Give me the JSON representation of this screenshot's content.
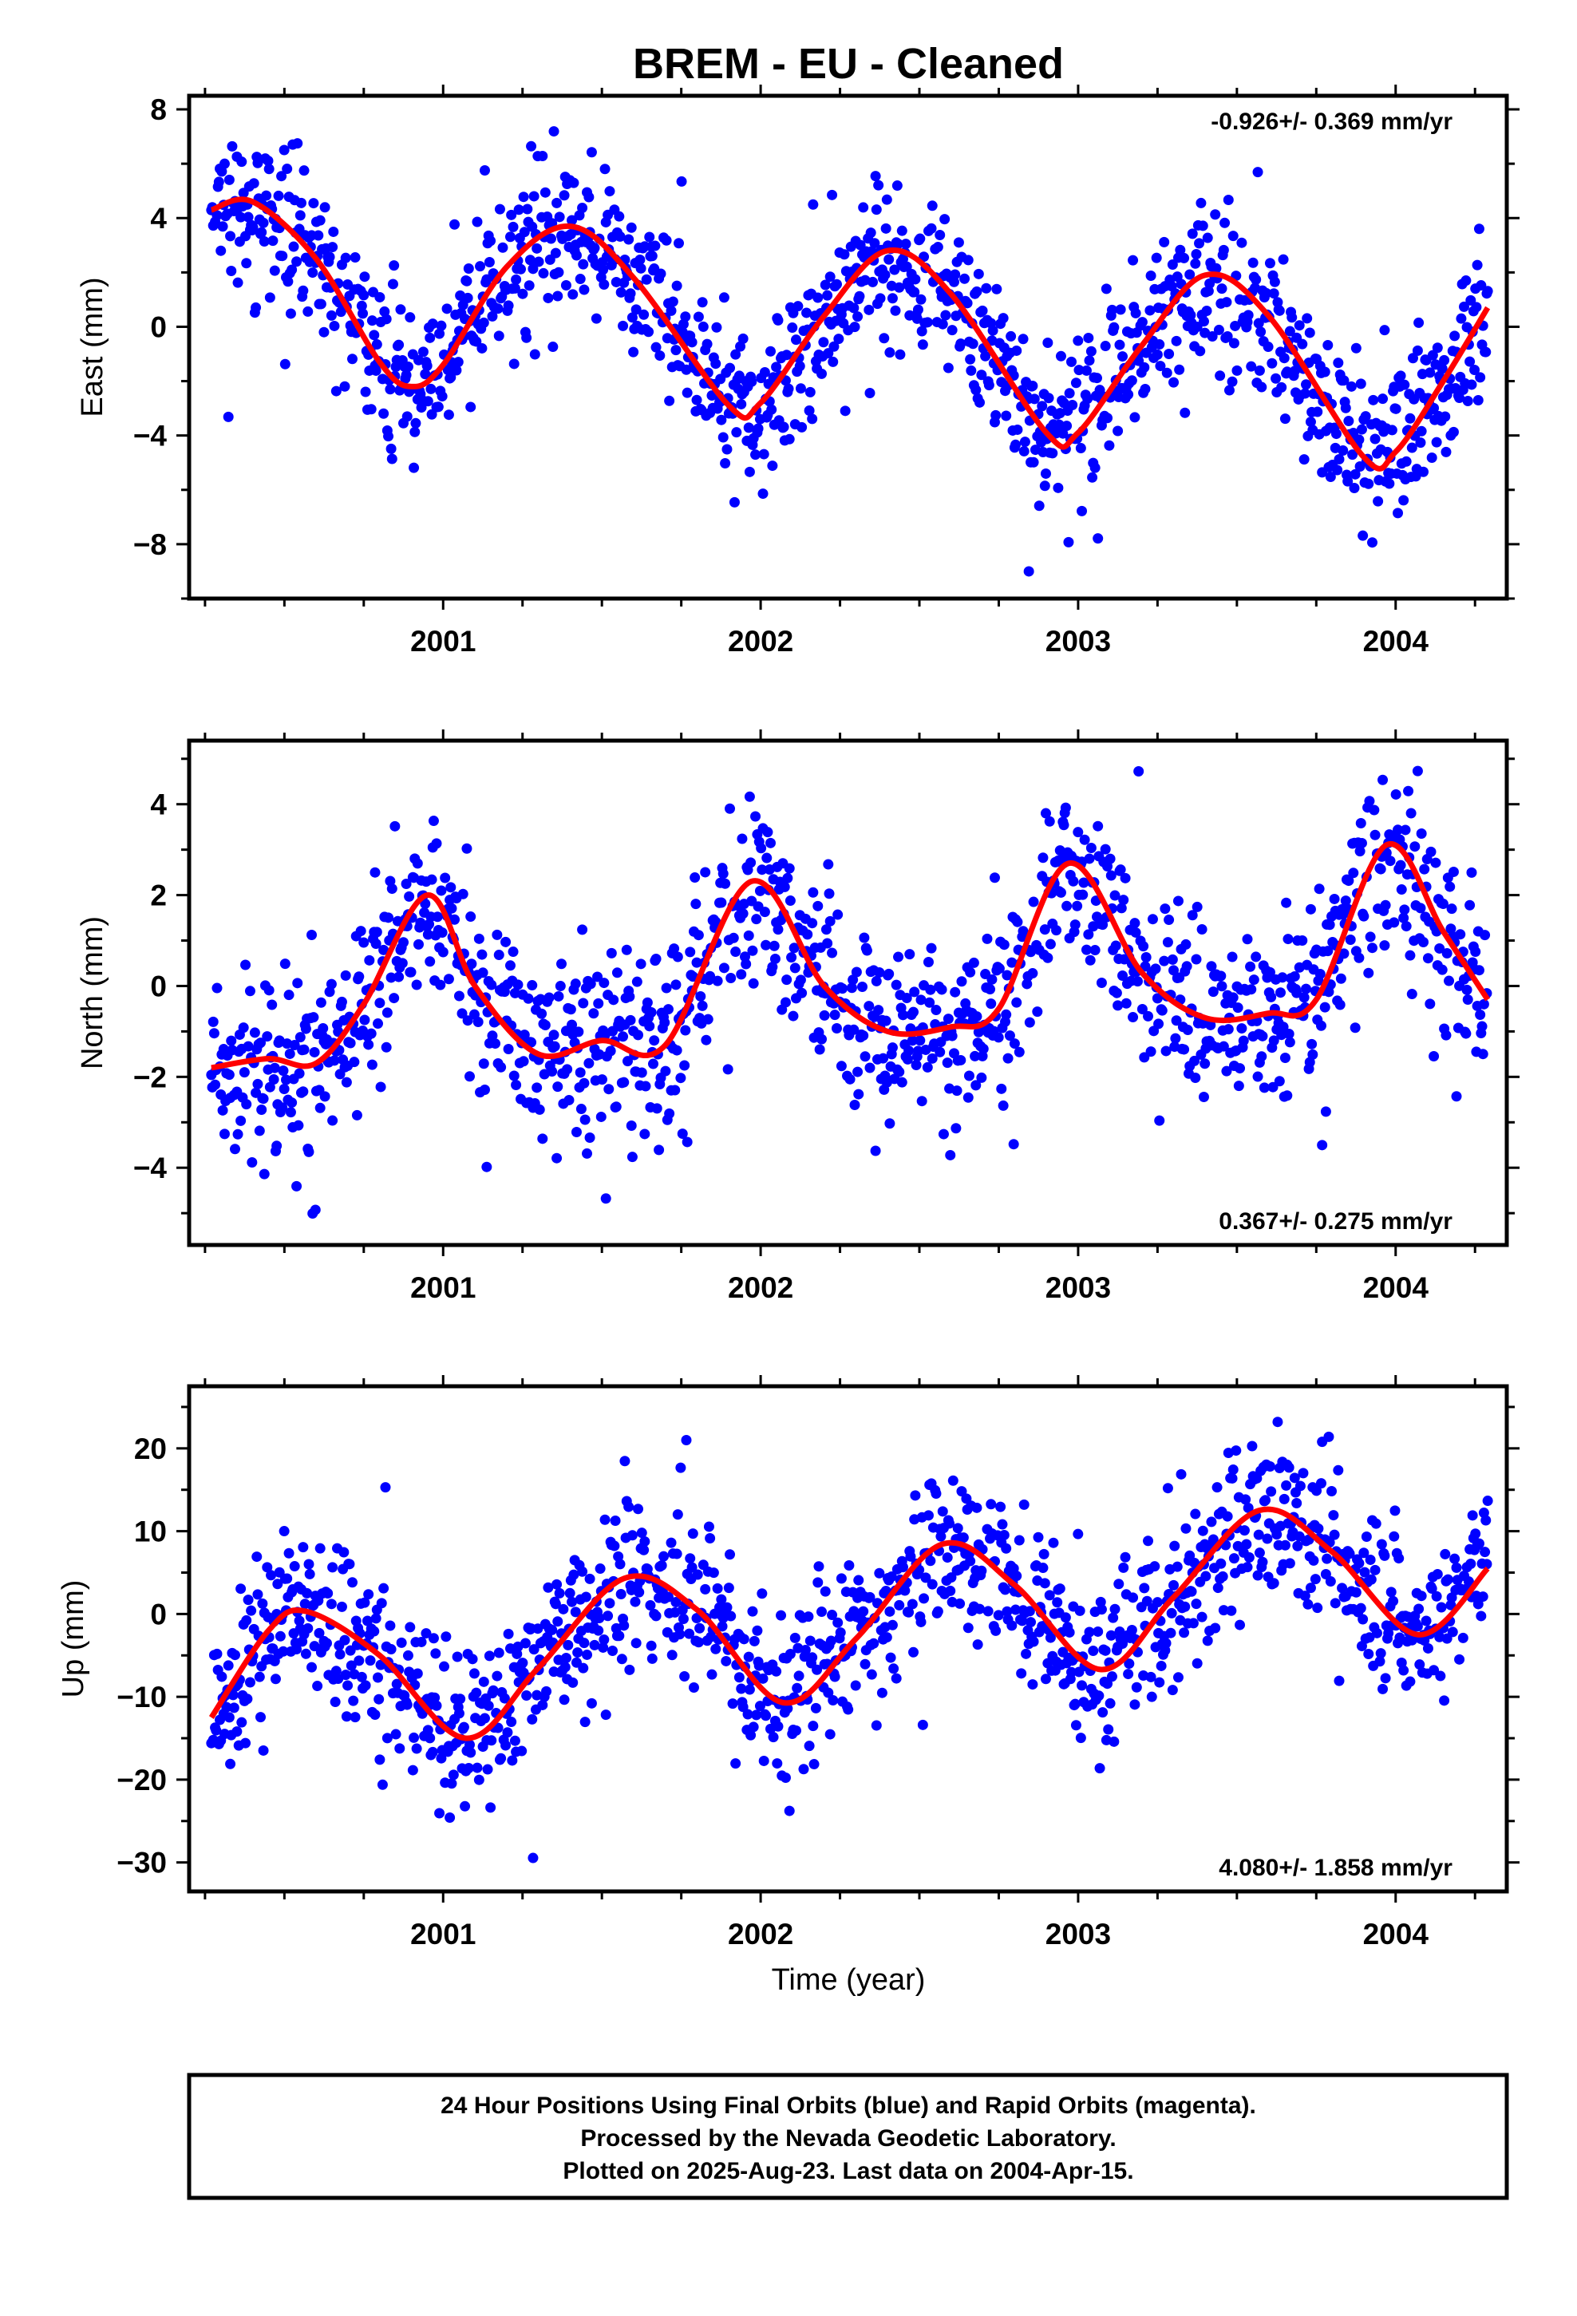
{
  "page": {
    "title": "BREM  - EU - Cleaned",
    "footer": [
      "24 Hour Positions Using Final Orbits (blue) and Rapid Orbits (magenta).",
      "Processed by the Nevada Geodetic Laboratory.",
      "Plotted on 2025-Aug-23. Last data on 2004-Apr-15."
    ]
  },
  "colors": {
    "points": "#0000ff",
    "fit": "#ff0000",
    "axis": "#000000"
  },
  "chart_data": [
    {
      "type": "scatter",
      "title": "BREM  - EU - Cleaned",
      "ylabel": "East (mm)",
      "xlabel": "",
      "xlim": [
        2000.2,
        2004.35
      ],
      "ylim": [
        -10,
        8.5
      ],
      "yticks": [
        8,
        4,
        0,
        -4,
        -8
      ],
      "ytick_labels": [
        "8",
        "4",
        "0",
        "−4",
        "−8"
      ],
      "xticks": [
        2001,
        2002,
        2003,
        2004
      ],
      "xtick_labels": [
        "2001",
        "2002",
        "2003",
        "2004"
      ],
      "rate_label": "-0.926+/- 0.369 mm/yr",
      "rate_position": "top-right",
      "model": {
        "offset": 0,
        "trend": -0.926,
        "annual_cos": 0.3,
        "annual_sin": 3.6,
        "semi_cos": 0,
        "semi_sin": 0,
        "ref_year": 2002.2,
        "noise": 1.4
      },
      "fit_curve": {
        "name": "fit",
        "x": [
          2000.27,
          2000.4,
          2000.6,
          2000.8,
          2000.9,
          2001.0,
          2001.2,
          2001.4,
          2001.6,
          2001.9,
          2002.0,
          2002.2,
          2002.4,
          2002.6,
          2002.9,
          2003.0,
          2003.2,
          2003.4,
          2003.6,
          2003.9,
          2004.0,
          2004.15,
          2004.29
        ],
        "y": [
          4.3,
          4.6,
          2.5,
          -1.3,
          -2.2,
          -1.4,
          2.2,
          3.7,
          1.8,
          -2.9,
          -2.8,
          0.4,
          2.8,
          1.2,
          -3.9,
          -3.9,
          -0.7,
          1.9,
          0.4,
          -4.8,
          -4.6,
          -2.0,
          0.7
        ]
      }
    },
    {
      "type": "scatter",
      "title": "",
      "ylabel": "North (mm)",
      "xlabel": "",
      "xlim": [
        2000.2,
        2004.35
      ],
      "ylim": [
        -5.7,
        5.4
      ],
      "yticks": [
        4,
        2,
        0,
        -2,
        -4
      ],
      "ytick_labels": [
        "4",
        "2",
        "0",
        "−2",
        "−4"
      ],
      "xticks": [
        2001,
        2002,
        2003,
        2004
      ],
      "xtick_labels": [
        "2001",
        "2002",
        "2003",
        "2004"
      ],
      "rate_label": "0.367+/- 0.275 mm/yr",
      "rate_position": "bottom-right",
      "model": {
        "offset": 0,
        "trend": 0.367,
        "annual_cos": 1.7,
        "annual_sin": 0.3,
        "semi_cos": 0.6,
        "semi_sin": 0.2,
        "ref_year": 2002.2,
        "noise": 1.0
      },
      "fit_curve": {
        "name": "fit",
        "x": [
          2000.27,
          2000.45,
          2000.6,
          2000.75,
          2000.95,
          2001.1,
          2001.3,
          2001.5,
          2001.7,
          2001.97,
          2002.2,
          2002.4,
          2002.6,
          2002.75,
          2002.97,
          2003.2,
          2003.4,
          2003.6,
          2003.75,
          2003.97,
          2004.15,
          2004.29
        ],
        "y": [
          -1.8,
          -1.6,
          -1.7,
          -0.4,
          2.0,
          0.0,
          -1.5,
          -1.2,
          -1.3,
          2.3,
          0.0,
          -1.0,
          -0.9,
          -0.5,
          2.7,
          0.3,
          -0.7,
          -0.6,
          -0.3,
          3.1,
          1.2,
          -0.3
        ]
      }
    },
    {
      "type": "scatter",
      "title": "",
      "ylabel": "Up (mm)",
      "xlabel": "Time (year)",
      "xlim": [
        2000.2,
        2004.35
      ],
      "ylim": [
        -33.5,
        27.5
      ],
      "yticks": [
        20,
        10,
        0,
        -10,
        -20,
        -30
      ],
      "ytick_labels": [
        "20",
        "10",
        "0",
        "−10",
        "−20",
        "−30"
      ],
      "xticks": [
        2001,
        2002,
        2003,
        2004
      ],
      "xtick_labels": [
        "2001",
        "2002",
        "2003",
        "2004"
      ],
      "rate_label": "4.080+/- 1.858 mm/yr",
      "rate_position": "bottom-right",
      "model": {
        "offset": 0,
        "trend": 4.08,
        "annual_cos": -9.0,
        "annual_sin": -0.4,
        "semi_cos": 0,
        "semi_sin": 0,
        "ref_year": 2002.2,
        "noise": 5.0
      },
      "fit_curve": {
        "name": "fit",
        "x": [
          2000.27,
          2000.45,
          2000.57,
          2000.8,
          2001.07,
          2001.3,
          2001.57,
          2001.8,
          2002.07,
          2002.3,
          2002.57,
          2002.8,
          2003.07,
          2003.3,
          2003.57,
          2003.8,
          2004.07,
          2004.29
        ],
        "y": [
          -12.5,
          -2.0,
          0.3,
          -5.0,
          -15.0,
          -6.5,
          4.3,
          0.5,
          -10.7,
          -3.0,
          8.4,
          3.5,
          -6.7,
          2.0,
          12.5,
          7.5,
          -2.5,
          5.5
        ]
      }
    }
  ]
}
